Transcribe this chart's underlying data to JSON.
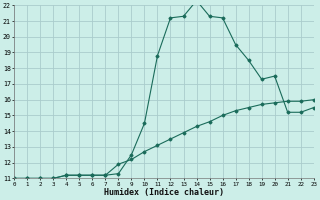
{
  "xlabel": "Humidex (Indice chaleur)",
  "bg_color": "#cceee8",
  "grid_color": "#aacccc",
  "line_color": "#1a6b5a",
  "line1_x": [
    0,
    1,
    2,
    3,
    4,
    5,
    6,
    7,
    8,
    9,
    10,
    11,
    12,
    13,
    14,
    15,
    16,
    17,
    18,
    19,
    20,
    21,
    22,
    23
  ],
  "line1_y": [
    11,
    11,
    11,
    11,
    11.2,
    11.2,
    11.2,
    11.2,
    11.3,
    12.5,
    14.5,
    18.8,
    21.2,
    21.3,
    22.3,
    21.3,
    21.2,
    19.5,
    18.5,
    17.3,
    17.5,
    15.2,
    15.2,
    15.5
  ],
  "line2_x": [
    0,
    1,
    2,
    3,
    4,
    5,
    6,
    7,
    8,
    9,
    10,
    11,
    12,
    13,
    14,
    15,
    16,
    17,
    18,
    19,
    20,
    21,
    22,
    23
  ],
  "line2_y": [
    11,
    11,
    11,
    11,
    11.2,
    11.2,
    11.2,
    11.2,
    11.9,
    12.2,
    12.7,
    13.1,
    13.5,
    13.9,
    14.3,
    14.6,
    15.0,
    15.3,
    15.5,
    15.7,
    15.8,
    15.9,
    15.9,
    16.0
  ],
  "ylim": [
    11,
    22
  ],
  "xlim": [
    0,
    23
  ],
  "yticks": [
    11,
    12,
    13,
    14,
    15,
    16,
    17,
    18,
    19,
    20,
    21,
    22
  ],
  "xticks": [
    0,
    1,
    2,
    3,
    4,
    5,
    6,
    7,
    8,
    9,
    10,
    11,
    12,
    13,
    14,
    15,
    16,
    17,
    18,
    19,
    20,
    21,
    22,
    23
  ]
}
